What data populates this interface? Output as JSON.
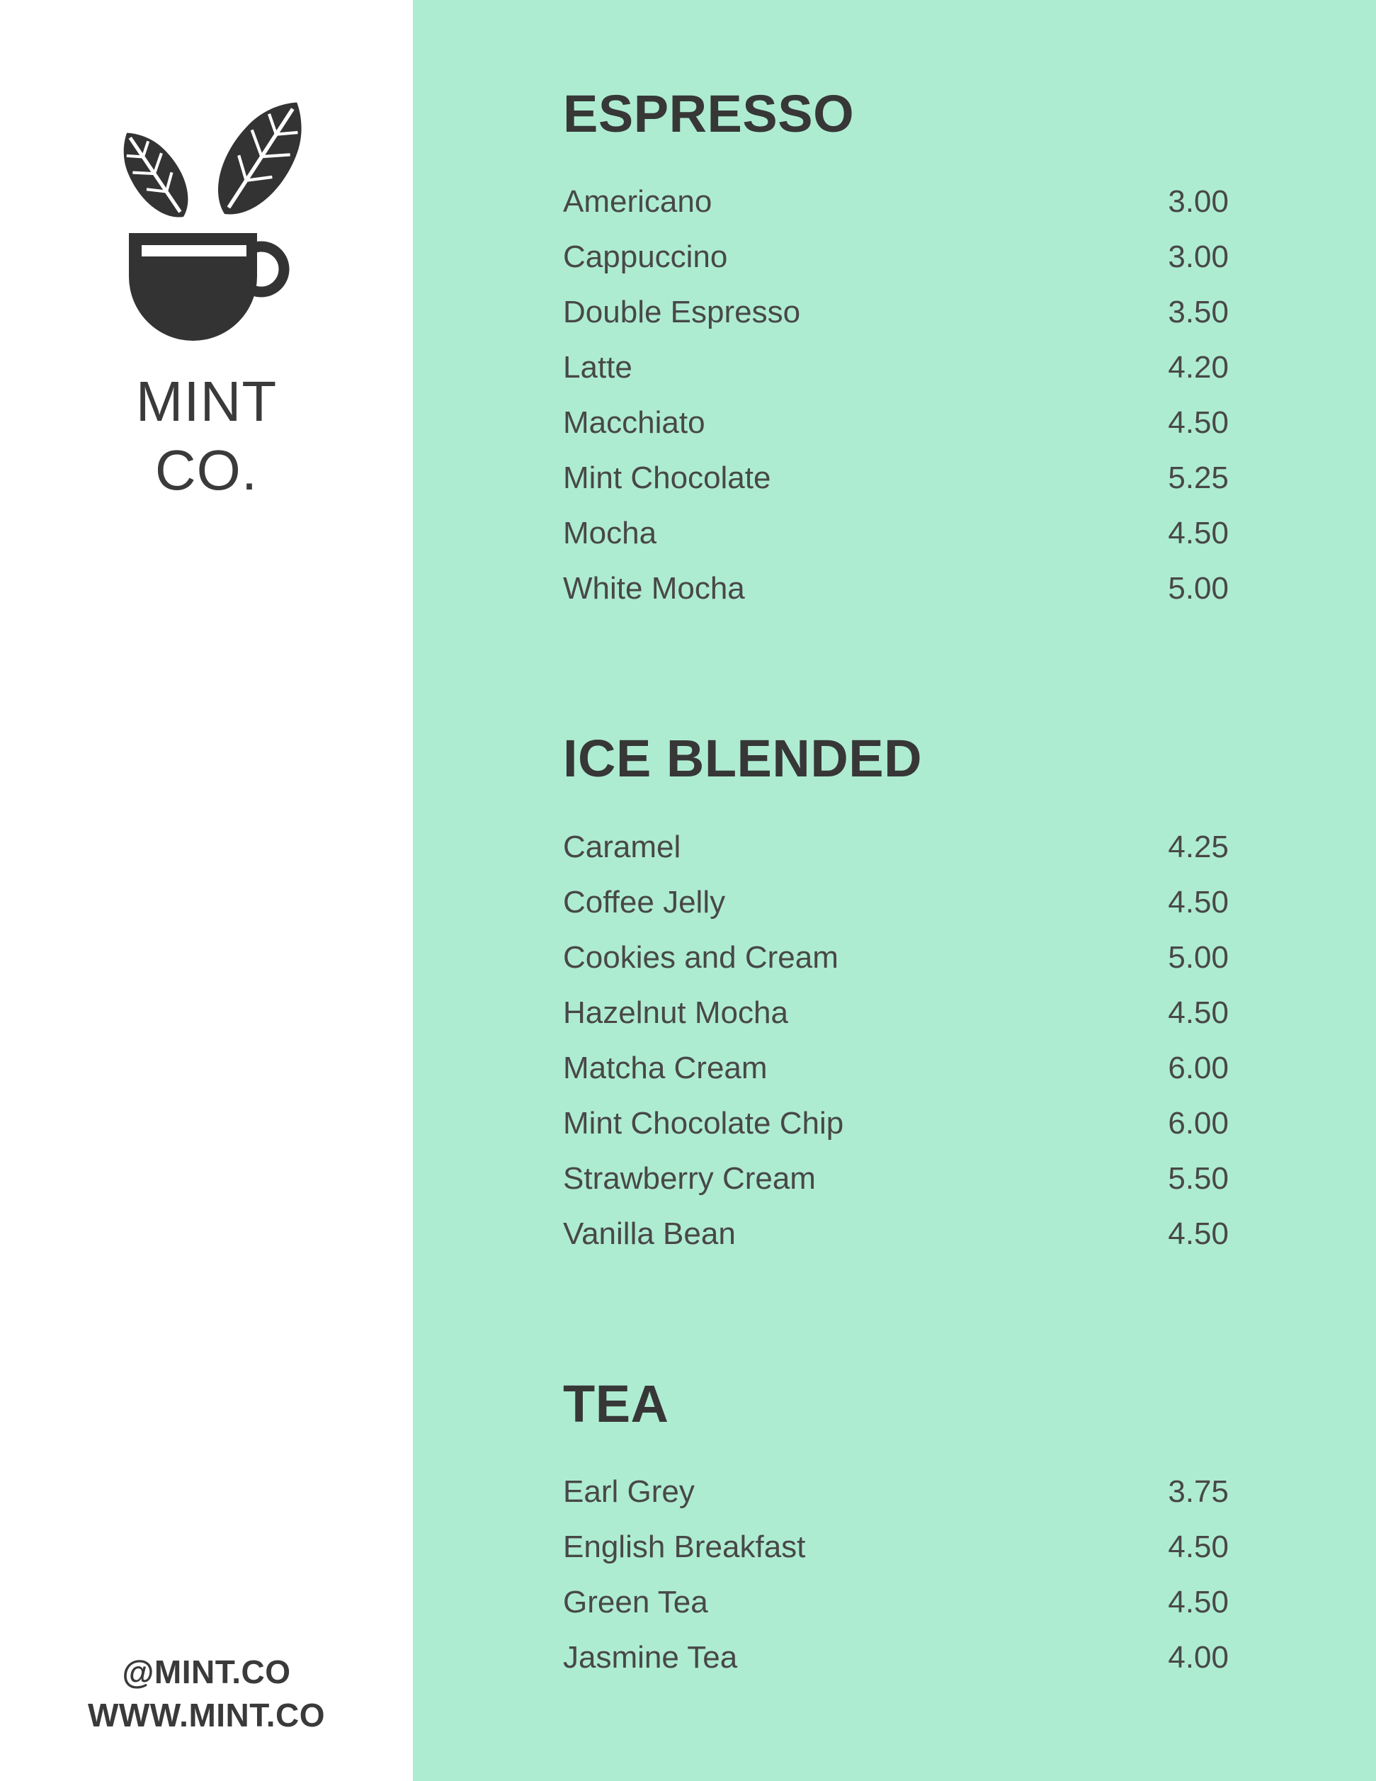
{
  "page": {
    "panel_color": "#aeecd2",
    "sidebar_color": "#ffffff",
    "heading_color": "#373737",
    "item_text_color": "#484848",
    "logo_color": "#333333"
  },
  "sidebar": {
    "logo_icon": "leaf-cup-logo",
    "brand_line1": "MINT",
    "brand_line2": "CO.",
    "footer_line1": "@MINT.CO",
    "footer_line2": "WWW.MINT.CO"
  },
  "menu": {
    "sections": [
      {
        "title": "ESPRESSO",
        "items": [
          {
            "name": "Americano",
            "price": "3.00"
          },
          {
            "name": "Cappuccino",
            "price": "3.00"
          },
          {
            "name": "Double Espresso",
            "price": "3.50"
          },
          {
            "name": "Latte",
            "price": "4.20"
          },
          {
            "name": "Macchiato",
            "price": "4.50"
          },
          {
            "name": "Mint Chocolate",
            "price": "5.25"
          },
          {
            "name": "Mocha",
            "price": "4.50"
          },
          {
            "name": "White Mocha",
            "price": "5.00"
          }
        ]
      },
      {
        "title": "ICE BLENDED",
        "items": [
          {
            "name": "Caramel",
            "price": "4.25"
          },
          {
            "name": "Coffee Jelly",
            "price": "4.50"
          },
          {
            "name": "Cookies and Cream",
            "price": "5.00"
          },
          {
            "name": "Hazelnut Mocha",
            "price": "4.50"
          },
          {
            "name": "Matcha Cream",
            "price": "6.00"
          },
          {
            "name": "Mint Chocolate Chip",
            "price": "6.00"
          },
          {
            "name": "Strawberry Cream",
            "price": "5.50"
          },
          {
            "name": "Vanilla Bean",
            "price": "4.50"
          }
        ]
      },
      {
        "title": "TEA",
        "items": [
          {
            "name": "Earl Grey",
            "price": "3.75"
          },
          {
            "name": "English Breakfast",
            "price": "4.50"
          },
          {
            "name": "Green Tea",
            "price": "4.50"
          },
          {
            "name": "Jasmine Tea",
            "price": "4.00"
          }
        ]
      }
    ]
  }
}
